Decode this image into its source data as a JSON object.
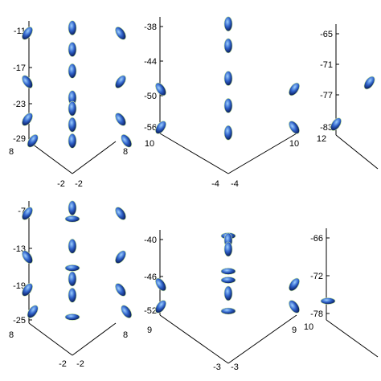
{
  "chart_data": [
    {
      "type": "scatter",
      "panel": "top-left",
      "z_ticks": [
        "-11",
        "-17",
        "-23",
        "-29"
      ],
      "x_ticks": [
        "8",
        "-2"
      ],
      "y_ticks": [
        "-2",
        "8"
      ],
      "z_range": [
        -32,
        -9
      ],
      "grid": false,
      "legend": "none",
      "points": [
        {
          "x": 3,
          "y": 3,
          "z": -10,
          "axis": "v"
        },
        {
          "x": 0,
          "y": 0,
          "z": -11,
          "axis": "d1"
        },
        {
          "x": 6,
          "y": 6,
          "z": -11,
          "axis": "d2"
        },
        {
          "x": 3,
          "y": 3,
          "z": -14,
          "axis": "v"
        },
        {
          "x": 3,
          "y": 3,
          "z": -18,
          "axis": "v"
        },
        {
          "x": 0,
          "y": 0,
          "z": -20,
          "axis": "d2"
        },
        {
          "x": 6,
          "y": 6,
          "z": -20,
          "axis": "d1"
        },
        {
          "x": 3,
          "y": 3,
          "z": -23,
          "axis": "v"
        },
        {
          "x": 3,
          "y": 3,
          "z": -25,
          "axis": "v"
        },
        {
          "x": 0,
          "y": 0,
          "z": -27,
          "axis": "d1"
        },
        {
          "x": 6,
          "y": 6,
          "z": -27,
          "axis": "d2"
        },
        {
          "x": 3,
          "y": 3,
          "z": -28,
          "axis": "v"
        },
        {
          "x": -1,
          "y": -1,
          "z": -31,
          "axis": "d1"
        },
        {
          "x": 7,
          "y": 7,
          "z": -31,
          "axis": "d2"
        },
        {
          "x": 3,
          "y": 3,
          "z": -31,
          "axis": "v"
        }
      ]
    },
    {
      "type": "scatter",
      "panel": "top-middle",
      "z_ticks": [
        "-38",
        "-44",
        "-50",
        "-56"
      ],
      "x_ticks": [
        "10",
        "-4"
      ],
      "y_ticks": [
        "-4",
        "10"
      ],
      "z_range": [
        -58,
        -36
      ],
      "grid": false,
      "legend": "none",
      "points": [
        {
          "x": 3,
          "y": 3,
          "z": -37,
          "axis": "v"
        },
        {
          "x": 3,
          "y": 3,
          "z": -41,
          "axis": "v"
        },
        {
          "x": 3,
          "y": 3,
          "z": -47,
          "axis": "v"
        },
        {
          "x": 0,
          "y": 0,
          "z": -49,
          "axis": "d2"
        },
        {
          "x": 6,
          "y": 6,
          "z": -49,
          "axis": "d1"
        },
        {
          "x": 3,
          "y": 3,
          "z": -52,
          "axis": "v"
        },
        {
          "x": 0,
          "y": 0,
          "z": -56,
          "axis": "d1"
        },
        {
          "x": 6,
          "y": 6,
          "z": -56,
          "axis": "d2"
        },
        {
          "x": 3,
          "y": 3,
          "z": -57,
          "axis": "v"
        }
      ]
    },
    {
      "type": "scatter",
      "panel": "top-right",
      "z_ticks": [
        "-65",
        "-71",
        "-77",
        "-83"
      ],
      "x_ticks": [
        "12"
      ],
      "y_ticks": [],
      "z_range": [
        -85,
        -63
      ],
      "grid": false,
      "legend": "none",
      "points": [
        {
          "x": 6,
          "y": 6,
          "z": -74,
          "axis": "d1"
        },
        {
          "x": 0,
          "y": 0,
          "z": -82,
          "axis": "d1"
        }
      ]
    },
    {
      "type": "scatter",
      "panel": "bottom-left",
      "z_ticks": [
        "-7",
        "-13",
        "-19",
        "-25"
      ],
      "x_ticks": [
        "8",
        "-2"
      ],
      "y_ticks": [
        "-2",
        "8"
      ],
      "z_range": [
        -28,
        -5
      ],
      "grid": false,
      "legend": "none",
      "points": [
        {
          "x": 3,
          "y": 3,
          "z": -6,
          "axis": "v"
        },
        {
          "x": 0,
          "y": 0,
          "z": -7,
          "axis": "d1"
        },
        {
          "x": 6,
          "y": 6,
          "z": -7,
          "axis": "d2"
        },
        {
          "x": 3,
          "y": 3,
          "z": -8,
          "axis": "h"
        },
        {
          "x": 3,
          "y": 3,
          "z": -13,
          "axis": "v"
        },
        {
          "x": 0,
          "y": 0,
          "z": -15,
          "axis": "d2"
        },
        {
          "x": 6,
          "y": 6,
          "z": -15,
          "axis": "d1"
        },
        {
          "x": 3,
          "y": 3,
          "z": -17,
          "axis": "h"
        },
        {
          "x": 3,
          "y": 3,
          "z": -19,
          "axis": "v"
        },
        {
          "x": 0,
          "y": 0,
          "z": -21,
          "axis": "d1"
        },
        {
          "x": 6,
          "y": 6,
          "z": -21,
          "axis": "d2"
        },
        {
          "x": 3,
          "y": 3,
          "z": -22,
          "axis": "v"
        },
        {
          "x": -1,
          "y": -1,
          "z": -25,
          "axis": "d1"
        },
        {
          "x": 7,
          "y": 7,
          "z": -25,
          "axis": "d2"
        },
        {
          "x": 3,
          "y": 3,
          "z": -26,
          "axis": "h"
        }
      ]
    },
    {
      "type": "scatter",
      "panel": "bottom-middle",
      "z_ticks": [
        "-40",
        "-46",
        "-52"
      ],
      "x_ticks": [
        "9",
        "-3"
      ],
      "y_ticks": [
        "-3",
        "9"
      ],
      "z_range": [
        -56,
        -36
      ],
      "grid": false,
      "legend": "none",
      "points": [
        {
          "x": 3,
          "y": 3,
          "z": -37,
          "axis": "h"
        },
        {
          "x": 3,
          "y": 3,
          "z": -38,
          "axis": "v"
        },
        {
          "x": 3,
          "y": 3,
          "z": -40,
          "axis": "v"
        },
        {
          "x": 3,
          "y": 3,
          "z": -45,
          "axis": "h"
        },
        {
          "x": 3,
          "y": 3,
          "z": -47,
          "axis": "h"
        },
        {
          "x": 0,
          "y": 0,
          "z": -48,
          "axis": "d2"
        },
        {
          "x": 6,
          "y": 6,
          "z": -48,
          "axis": "d1"
        },
        {
          "x": 3,
          "y": 3,
          "z": -50,
          "axis": "v"
        },
        {
          "x": 0,
          "y": 0,
          "z": -53,
          "axis": "d1"
        },
        {
          "x": 6,
          "y": 6,
          "z": -53,
          "axis": "d2"
        },
        {
          "x": 3,
          "y": 3,
          "z": -54,
          "axis": "h"
        }
      ]
    },
    {
      "type": "scatter",
      "panel": "bottom-right",
      "z_ticks": [
        "-66",
        "-72",
        "-78"
      ],
      "x_ticks": [
        "10"
      ],
      "y_ticks": [],
      "z_range": [
        -80,
        -64
      ],
      "grid": false,
      "legend": "none",
      "points": [
        {
          "x": 0,
          "y": 0,
          "z": -76,
          "axis": "h"
        }
      ]
    }
  ],
  "colors": {
    "ellipsoid_dark": "#0b1f5e",
    "ellipsoid_mid": "#2f62c9",
    "ellipsoid_light": "#9fd2ff",
    "ellipsoid_rim": "#d8f0a0"
  }
}
